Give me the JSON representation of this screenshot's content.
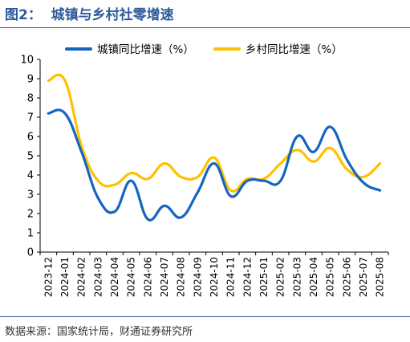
{
  "header": {
    "title": "图2：  城镇与乡村社零增速"
  },
  "footer": {
    "source": "数据来源：国家统计局，财通证券研究所"
  },
  "chart_data": {
    "type": "line",
    "categories": [
      "2023-12",
      "2024-01",
      "2024-02",
      "2024-03",
      "2024-04",
      "2024-05",
      "2024-06",
      "2024-07",
      "2024-08",
      "2024-09",
      "2024-10",
      "2024-11",
      "2024-12",
      "2025-01",
      "2025-02",
      "2025-03",
      "2025-04",
      "2025-05",
      "2025-06",
      "2025-07",
      "2025-08"
    ],
    "series": [
      {
        "name": "城镇同比增速（%）",
        "color": "#1565C0",
        "values": [
          7.2,
          7.2,
          5.2,
          2.8,
          2.1,
          3.7,
          1.7,
          2.4,
          1.8,
          3.1,
          4.6,
          2.9,
          3.7,
          3.7,
          3.7,
          6.0,
          5.2,
          6.5,
          4.8,
          3.6,
          3.2
        ]
      },
      {
        "name": "乡村同比增速（%）",
        "color": "#FFC000",
        "values": [
          8.9,
          8.9,
          5.5,
          3.7,
          3.5,
          4.1,
          3.8,
          4.6,
          3.9,
          3.9,
          4.9,
          3.2,
          3.8,
          3.8,
          4.6,
          5.3,
          4.7,
          5.4,
          4.3,
          3.9,
          4.6
        ]
      }
    ],
    "ylim": [
      0,
      10
    ],
    "yticks": [
      0,
      1,
      2,
      3,
      4,
      5,
      6,
      7,
      8,
      9,
      10
    ],
    "grid": false,
    "legend_position": "top"
  }
}
